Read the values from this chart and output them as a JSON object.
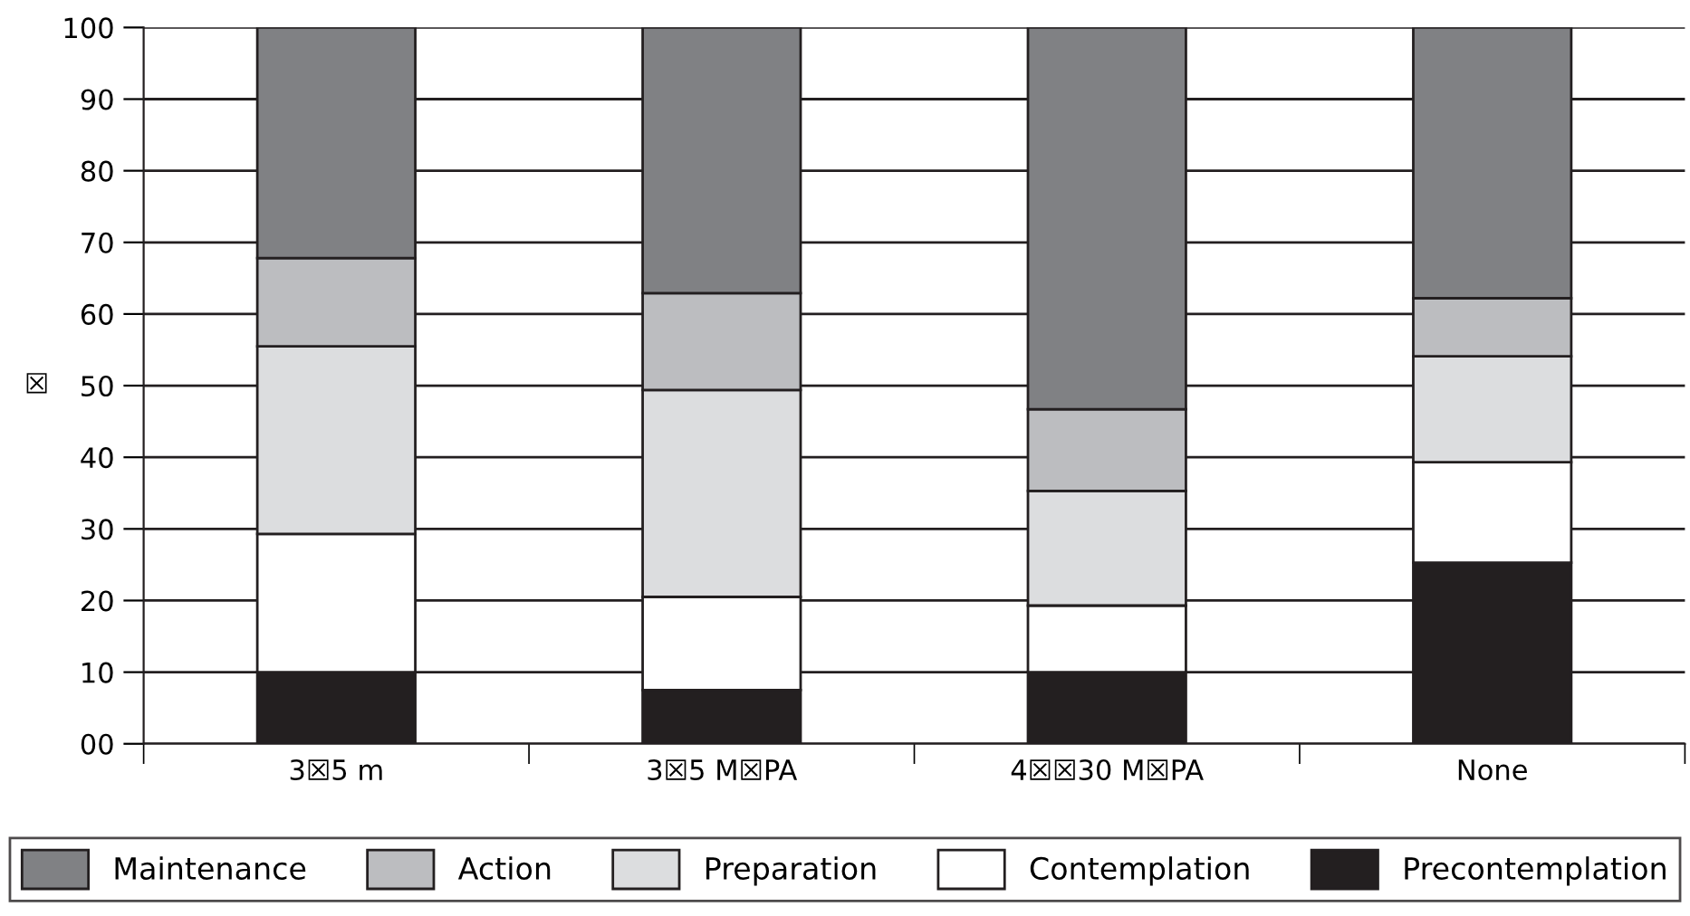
{
  "chart_data": {
    "type": "bar",
    "stacked": true,
    "ylabel": "☒",
    "categories": [
      "3☒5 m",
      "3☒5 M☒PA",
      "4☒☒30 M☒PA",
      "None"
    ],
    "series": [
      {
        "name": "Precontemplation",
        "color": "#231f20",
        "values": [
          10,
          7.5,
          10,
          25.3
        ]
      },
      {
        "name": "Contemplation",
        "color": "#ffffff",
        "values": [
          19.3,
          13,
          9.3,
          14
        ]
      },
      {
        "name": "Preparation",
        "color": "#dcdddf",
        "values": [
          26.2,
          28.9,
          16,
          14.8
        ]
      },
      {
        "name": "Action",
        "color": "#bcbdc0",
        "values": [
          12.3,
          13.5,
          11.4,
          8.1
        ]
      },
      {
        "name": "Maintenance",
        "color": "#808184",
        "values": [
          32.2,
          37.1,
          53.3,
          37.8
        ]
      }
    ],
    "ylim": [
      0,
      100
    ],
    "yticks": [
      {
        "value": 0,
        "label": "00"
      },
      10,
      20,
      30,
      40,
      50,
      60,
      70,
      80,
      90,
      100
    ],
    "grid": "y",
    "legend": "bottom"
  }
}
